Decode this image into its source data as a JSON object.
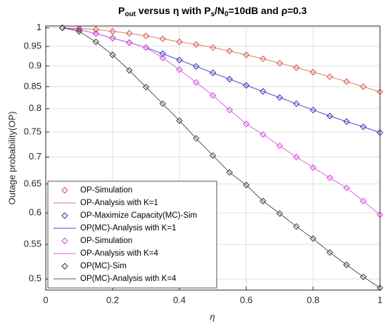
{
  "chart_data": {
    "type": "line",
    "title_parts": [
      "P",
      "out",
      " versus η with P",
      "s",
      "/N",
      "0",
      "=10dB and ρ=0.3"
    ],
    "xlabel": "η",
    "ylabel": "Outage probability(OP)",
    "x": [
      0.05,
      0.1,
      0.15,
      0.2,
      0.25,
      0.3,
      0.35,
      0.4,
      0.45,
      0.5,
      0.55,
      0.6,
      0.65,
      0.7,
      0.75,
      0.8,
      0.85,
      0.9,
      0.95,
      1
    ],
    "xlim": [
      0,
      1
    ],
    "xticks": [
      0,
      0.2,
      0.4,
      0.6,
      0.8,
      1
    ],
    "ylim": [
      0.485,
      1.005
    ],
    "yticks": [
      0.5,
      0.55,
      0.6,
      0.65,
      0.7,
      0.75,
      0.8,
      0.85,
      0.9,
      0.95,
      1
    ],
    "yscale": "log",
    "grid": true,
    "legend": "lower left",
    "series": [
      {
        "name": "OP-Simulation",
        "color": "#c8503a",
        "mode": "markers",
        "values": [
          1,
          0.998,
          0.995,
          0.99,
          0.985,
          0.978,
          0.97,
          0.962,
          0.955,
          0.947,
          0.938,
          0.928,
          0.918,
          0.907,
          0.896,
          0.885,
          0.874,
          0.862,
          0.85,
          0.838
        ]
      },
      {
        "name": "OP-Analysis with K=1",
        "color": "#e07a6a",
        "mode": "lines",
        "values": [
          1,
          0.998,
          0.995,
          0.99,
          0.985,
          0.978,
          0.97,
          0.962,
          0.955,
          0.947,
          0.938,
          0.928,
          0.918,
          0.907,
          0.896,
          0.885,
          0.874,
          0.862,
          0.85,
          0.838
        ]
      },
      {
        "name": "OP-Maximize Capacity(MC)-Sim",
        "color": "#2b2ba8",
        "mode": "markers",
        "values": [
          1,
          0.995,
          0.984,
          0.972,
          0.96,
          0.947,
          0.931,
          0.915,
          0.899,
          0.883,
          0.868,
          0.853,
          0.839,
          0.825,
          0.811,
          0.797,
          0.784,
          0.772,
          0.761,
          0.749
        ]
      },
      {
        "name": "OP(MC)-Analysis with K=1",
        "color": "#4a4ad8",
        "mode": "lines",
        "values": [
          1,
          0.995,
          0.984,
          0.972,
          0.96,
          0.947,
          0.931,
          0.915,
          0.899,
          0.883,
          0.868,
          0.853,
          0.839,
          0.825,
          0.811,
          0.797,
          0.784,
          0.772,
          0.761,
          0.749
        ]
      },
      {
        "name": "OP-Simulation",
        "color": "#d63cd6",
        "mode": "markers",
        "values": [
          1,
          0.995,
          0.984,
          0.972,
          0.96,
          0.947,
          0.92,
          0.891,
          0.86,
          0.83,
          0.797,
          0.767,
          0.745,
          0.722,
          0.7,
          0.68,
          0.661,
          0.643,
          0.62,
          0.597
        ]
      },
      {
        "name": "OP-Analysis with K=4",
        "color": "#e060e6",
        "mode": "lines",
        "values": [
          1,
          0.995,
          0.984,
          0.972,
          0.96,
          0.947,
          0.92,
          0.891,
          0.86,
          0.83,
          0.797,
          0.767,
          0.745,
          0.722,
          0.7,
          0.68,
          0.661,
          0.643,
          0.62,
          0.597
        ]
      },
      {
        "name": "OP(MC)-Sim",
        "color": "#333333",
        "mode": "markers",
        "values": [
          1,
          0.99,
          0.962,
          0.928,
          0.889,
          0.849,
          0.811,
          0.774,
          0.737,
          0.703,
          0.671,
          0.648,
          0.62,
          0.599,
          0.578,
          0.559,
          0.538,
          0.52,
          0.503,
          0.488
        ]
      },
      {
        "name": "OP(MC)-Analysis with K=4",
        "color": "#555555",
        "mode": "lines",
        "values": [
          1,
          0.99,
          0.962,
          0.928,
          0.889,
          0.849,
          0.811,
          0.774,
          0.737,
          0.703,
          0.671,
          0.648,
          0.62,
          0.599,
          0.578,
          0.559,
          0.538,
          0.52,
          0.503,
          0.488
        ]
      }
    ]
  }
}
